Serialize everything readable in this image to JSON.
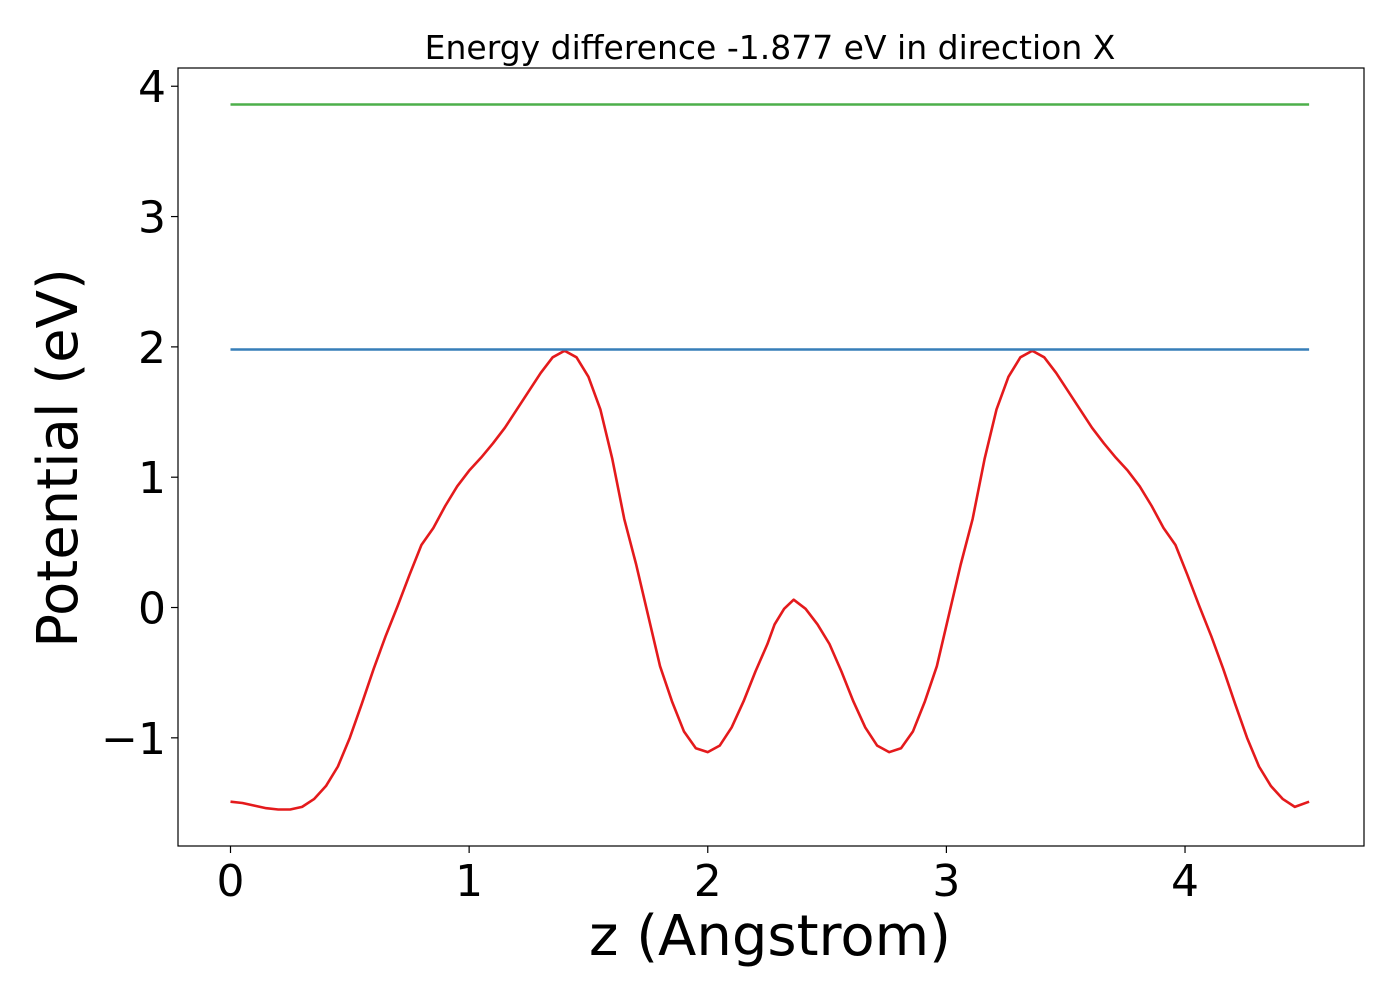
{
  "chart_data": {
    "type": "line",
    "title": "Energy difference -1.877 eV in direction X",
    "xlabel": "z (Angstrom)",
    "ylabel": "Potential (eV)",
    "xlim": [
      -0.22,
      4.75
    ],
    "ylim": [
      -1.83,
      4.14
    ],
    "x_ticks": [
      0,
      1,
      2,
      3,
      4
    ],
    "x_tick_labels": [
      "0",
      "1",
      "2",
      "3",
      "4"
    ],
    "y_ticks": [
      -1,
      0,
      1,
      2,
      3,
      4
    ],
    "y_tick_labels": [
      "−1",
      "0",
      "1",
      "2",
      "3",
      "4"
    ],
    "grid": false,
    "series": [
      {
        "color": "#e41a1c",
        "x": [
          0.0,
          0.05,
          0.1,
          0.15,
          0.2,
          0.25,
          0.3,
          0.35,
          0.4,
          0.45,
          0.5,
          0.55,
          0.6,
          0.65,
          0.7,
          0.75,
          0.8,
          0.85,
          0.9,
          0.95,
          1.0,
          1.05,
          1.1,
          1.15,
          1.2,
          1.25,
          1.3,
          1.35,
          1.4,
          1.45,
          1.5,
          1.55,
          1.6,
          1.65,
          1.7,
          1.75,
          1.8,
          1.85,
          1.9,
          1.95,
          2.0,
          2.05,
          2.1,
          2.15,
          2.2,
          2.25,
          2.28,
          2.32,
          2.36,
          2.41,
          2.46,
          2.51,
          2.56,
          2.61,
          2.66,
          2.71,
          2.76,
          2.81,
          2.86,
          2.91,
          2.96,
          3.01,
          3.06,
          3.11,
          3.16,
          3.21,
          3.26,
          3.31,
          3.36,
          3.41,
          3.46,
          3.51,
          3.56,
          3.61,
          3.66,
          3.71,
          3.76,
          3.81,
          3.86,
          3.91,
          3.96,
          4.01,
          4.06,
          4.11,
          4.16,
          4.21,
          4.26,
          4.31,
          4.36,
          4.41,
          4.46,
          4.52
        ],
        "y": [
          -1.49,
          -1.5,
          -1.52,
          -1.54,
          -1.55,
          -1.55,
          -1.53,
          -1.47,
          -1.37,
          -1.22,
          -1.0,
          -0.74,
          -0.47,
          -0.22,
          0.01,
          0.25,
          0.48,
          0.61,
          0.78,
          0.93,
          1.05,
          1.15,
          1.26,
          1.38,
          1.52,
          1.66,
          1.8,
          1.92,
          1.97,
          1.92,
          1.77,
          1.52,
          1.14,
          0.68,
          0.33,
          -0.06,
          -0.45,
          -0.72,
          -0.95,
          -1.08,
          -1.11,
          -1.06,
          -0.92,
          -0.72,
          -0.49,
          -0.28,
          -0.13,
          -0.01,
          0.06,
          -0.01,
          -0.13,
          -0.28,
          -0.49,
          -0.72,
          -0.92,
          -1.06,
          -1.11,
          -1.08,
          -0.95,
          -0.72,
          -0.45,
          -0.06,
          0.33,
          0.68,
          1.14,
          1.52,
          1.77,
          1.92,
          1.97,
          1.92,
          1.8,
          1.66,
          1.52,
          1.38,
          1.26,
          1.15,
          1.05,
          0.93,
          0.78,
          0.61,
          0.48,
          0.25,
          0.01,
          -0.22,
          -0.47,
          -0.74,
          -1.0,
          -1.22,
          -1.37,
          -1.47,
          -1.53,
          -1.49
        ]
      },
      {
        "color": "#377eb8",
        "x": [
          0.0,
          4.52
        ],
        "y": [
          1.98,
          1.98
        ]
      },
      {
        "color": "#4daf4a",
        "x": [
          0.0,
          4.52
        ],
        "y": [
          3.86,
          3.86
        ]
      }
    ]
  }
}
